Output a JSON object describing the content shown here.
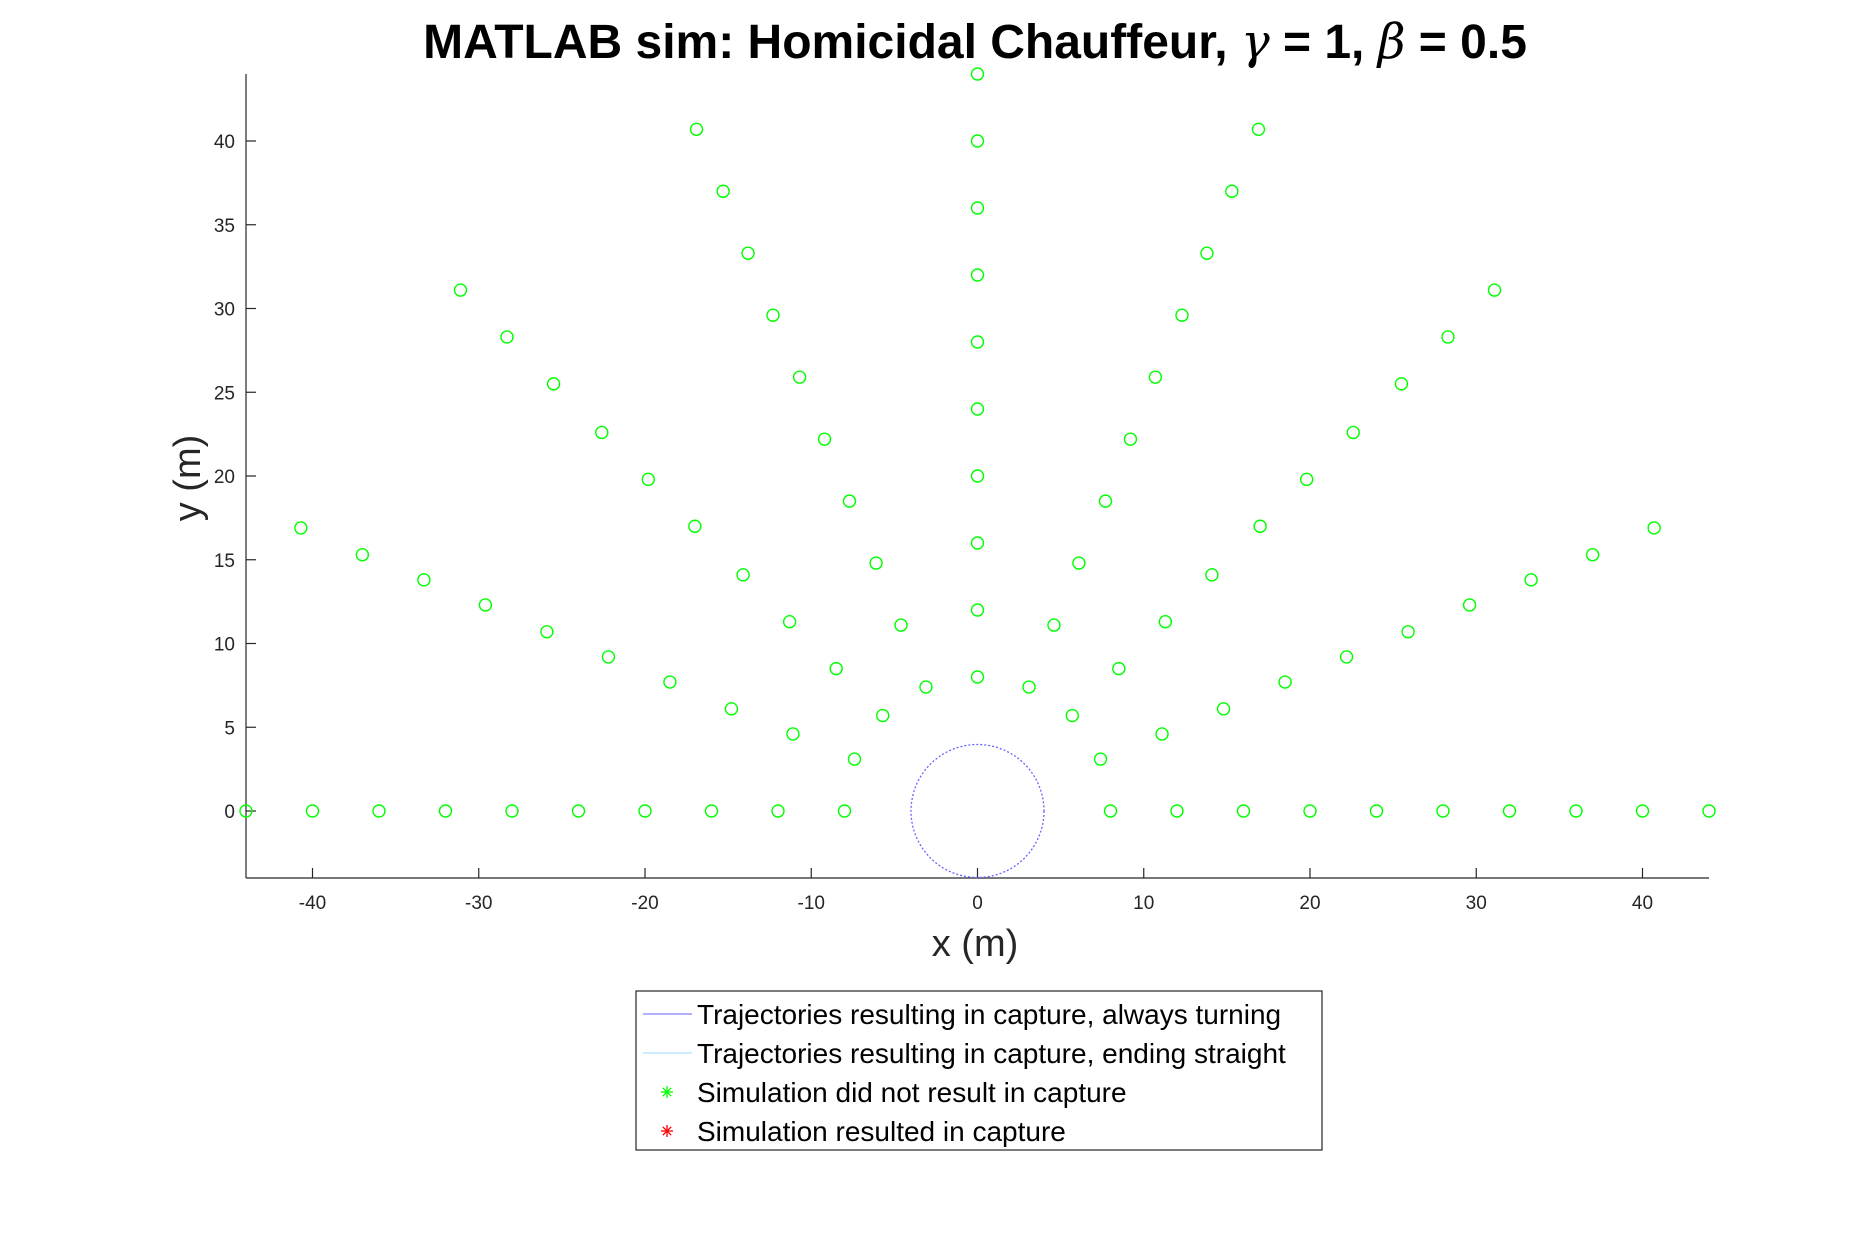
{
  "chart_data": {
    "type": "scatter",
    "title_prefix": "MATLAB sim: Homicidal Chauffeur, ",
    "gamma_symbol": "γ",
    "gamma_value": " = 1, ",
    "beta_symbol": "β",
    "beta_value": " = 0.5",
    "xlabel": "x (m)",
    "ylabel": "y (m)",
    "xlim": [
      -44,
      44
    ],
    "ylim": [
      -4,
      44
    ],
    "xticks": [
      -40,
      -30,
      -20,
      -10,
      0,
      10,
      20,
      30,
      40
    ],
    "yticks": [
      0,
      5,
      10,
      15,
      20,
      25,
      30,
      35,
      40
    ],
    "grid": false,
    "legend_position": "bottom-outside",
    "legend": [
      {
        "label": "Trajectories resulting in capture, always turning",
        "marker": "line",
        "color": "#8080ff"
      },
      {
        "label": "Trajectories resulting in capture, ending straight",
        "marker": "line",
        "color": "#b0e0ff"
      },
      {
        "label": "Simulation did not result in capture",
        "marker": "star",
        "color": "#00ff00"
      },
      {
        "label": "Simulation resulted in capture",
        "marker": "star",
        "color": "#ff0000"
      }
    ],
    "capture_circle": {
      "center": [
        0,
        0
      ],
      "radius": 4,
      "color": "#6666ff"
    },
    "series": [
      {
        "color": "#00ff00",
        "marker": "circle",
        "points": [
          [
            -44,
            0
          ],
          [
            -40,
            0
          ],
          [
            -36,
            0
          ],
          [
            -32,
            0
          ],
          [
            -28,
            0
          ],
          [
            -24,
            0
          ],
          [
            -20,
            0
          ],
          [
            -16,
            0
          ],
          [
            -12,
            0
          ],
          [
            -8,
            0
          ],
          [
            8,
            0
          ],
          [
            12,
            0
          ],
          [
            16,
            0
          ],
          [
            20,
            0
          ],
          [
            24,
            0
          ],
          [
            28,
            0
          ],
          [
            32,
            0
          ],
          [
            36,
            0
          ],
          [
            40,
            0
          ],
          [
            44,
            0
          ],
          [
            0,
            8
          ],
          [
            0,
            12
          ],
          [
            0,
            16
          ],
          [
            0,
            20
          ],
          [
            0,
            24
          ],
          [
            0,
            28
          ],
          [
            0,
            32
          ],
          [
            0,
            36
          ],
          [
            0,
            40
          ],
          [
            0,
            44
          ],
          [
            -3.1,
            7.4
          ],
          [
            -4.6,
            11.1
          ],
          [
            3.1,
            7.4
          ],
          [
            4.6,
            11.1
          ],
          [
            -5.7,
            5.7
          ],
          [
            -8.5,
            8.5
          ],
          [
            -11.3,
            11.3
          ],
          [
            5.7,
            5.7
          ],
          [
            8.5,
            8.5
          ],
          [
            11.3,
            11.3
          ],
          [
            -7.4,
            3.1
          ],
          [
            -11.1,
            4.6
          ],
          [
            -14.8,
            6.1
          ],
          [
            -18.5,
            7.7
          ],
          [
            -22.2,
            9.2
          ],
          [
            -25.9,
            10.7
          ],
          [
            -29.6,
            12.3
          ],
          [
            -33.3,
            13.8
          ],
          [
            -37.0,
            15.3
          ],
          [
            -40.7,
            16.9
          ],
          [
            7.4,
            3.1
          ],
          [
            11.1,
            4.6
          ],
          [
            14.8,
            6.1
          ],
          [
            18.5,
            7.7
          ],
          [
            22.2,
            9.2
          ],
          [
            25.9,
            10.7
          ],
          [
            29.6,
            12.3
          ],
          [
            33.3,
            13.8
          ],
          [
            37.0,
            15.3
          ],
          [
            40.7,
            16.9
          ],
          [
            -6.1,
            14.8
          ],
          [
            -7.7,
            18.5
          ],
          [
            -9.2,
            22.2
          ],
          [
            -10.7,
            25.9
          ],
          [
            -12.3,
            29.6
          ],
          [
            -13.8,
            33.3
          ],
          [
            -15.3,
            37.0
          ],
          [
            -16.9,
            40.7
          ],
          [
            6.1,
            14.8
          ],
          [
            7.7,
            18.5
          ],
          [
            9.2,
            22.2
          ],
          [
            10.7,
            25.9
          ],
          [
            12.3,
            29.6
          ],
          [
            13.8,
            33.3
          ],
          [
            15.3,
            37.0
          ],
          [
            16.9,
            40.7
          ],
          [
            -14.1,
            14.1
          ],
          [
            -17.0,
            17.0
          ],
          [
            -19.8,
            19.8
          ],
          [
            -22.6,
            22.6
          ],
          [
            -25.5,
            25.5
          ],
          [
            -28.3,
            28.3
          ],
          [
            -31.1,
            31.1
          ],
          [
            14.1,
            14.1
          ],
          [
            17.0,
            17.0
          ],
          [
            19.8,
            19.8
          ],
          [
            22.6,
            22.6
          ],
          [
            25.5,
            25.5
          ],
          [
            28.3,
            28.3
          ],
          [
            31.1,
            31.1
          ]
        ]
      }
    ]
  }
}
